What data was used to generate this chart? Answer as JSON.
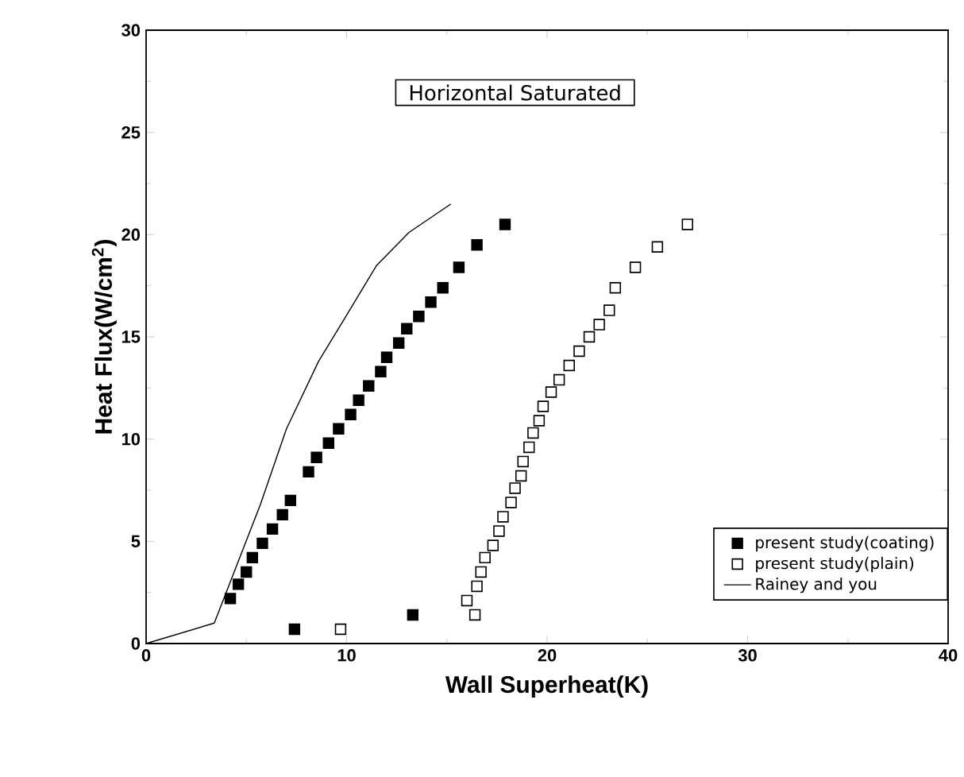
{
  "chart_data": {
    "type": "scatter",
    "xlabel": "Wall Superheat(K)",
    "ylabel": "Heat Flux(W/cm$^{2}$)",
    "annotations": [
      "Horizontal Saturated"
    ],
    "xlim": [
      0,
      40
    ],
    "ylim": [
      0,
      30
    ],
    "xticks": [
      0,
      10,
      20,
      30,
      40
    ],
    "yticks": [
      0,
      5,
      10,
      15,
      20,
      25,
      30
    ],
    "legend": "bottom right",
    "marker": "square",
    "series": [
      {
        "name": "present study(coating)",
        "color": "#000000",
        "x": [
          7.4,
          13.3,
          4.2,
          4.6,
          5.0,
          5.3,
          5.8,
          6.3,
          6.8,
          7.2,
          8.1,
          8.5,
          9.1,
          9.6,
          10.2,
          10.6,
          11.1,
          11.7,
          12.0,
          12.6,
          13.0,
          13.6,
          14.2,
          14.8,
          15.6,
          16.5,
          17.9
        ],
        "values": [
          0.7,
          1.4,
          2.2,
          2.9,
          3.5,
          4.2,
          4.9,
          5.6,
          6.3,
          7.0,
          8.4,
          9.1,
          9.8,
          10.5,
          11.2,
          11.9,
          12.6,
          13.3,
          14.0,
          14.7,
          15.4,
          16.0,
          16.7,
          17.4,
          18.4,
          19.5,
          20.5
        ]
      },
      {
        "name": "present study(plain)",
        "color": "#000000",
        "x": [
          9.7,
          16.4,
          16.0,
          16.5,
          16.7,
          16.9,
          17.3,
          17.6,
          17.8,
          18.2,
          18.4,
          18.7,
          18.8,
          19.1,
          19.3,
          19.6,
          19.8,
          20.2,
          20.6,
          21.1,
          21.6,
          22.1,
          22.6,
          23.1,
          23.4,
          24.4,
          25.5,
          27.0
        ],
        "values": [
          0.7,
          1.4,
          2.1,
          2.8,
          3.5,
          4.2,
          4.8,
          5.5,
          6.2,
          6.9,
          7.6,
          8.2,
          8.9,
          9.6,
          10.3,
          10.9,
          11.6,
          12.3,
          12.9,
          13.6,
          14.3,
          15.0,
          15.6,
          16.3,
          17.4,
          18.4,
          19.4,
          20.5
        ]
      },
      {
        "name": "Rainey and you",
        "type": "line",
        "color": "#000000",
        "marker": "none",
        "line_style": "solid",
        "x": [
          0,
          3.4,
          5.7,
          7.0,
          8.6,
          9.9,
          11.5,
          13.1,
          15.2
        ],
        "values": [
          0,
          1.0,
          6.8,
          10.5,
          13.8,
          15.9,
          18.5,
          20.1,
          21.5
        ]
      }
    ]
  }
}
